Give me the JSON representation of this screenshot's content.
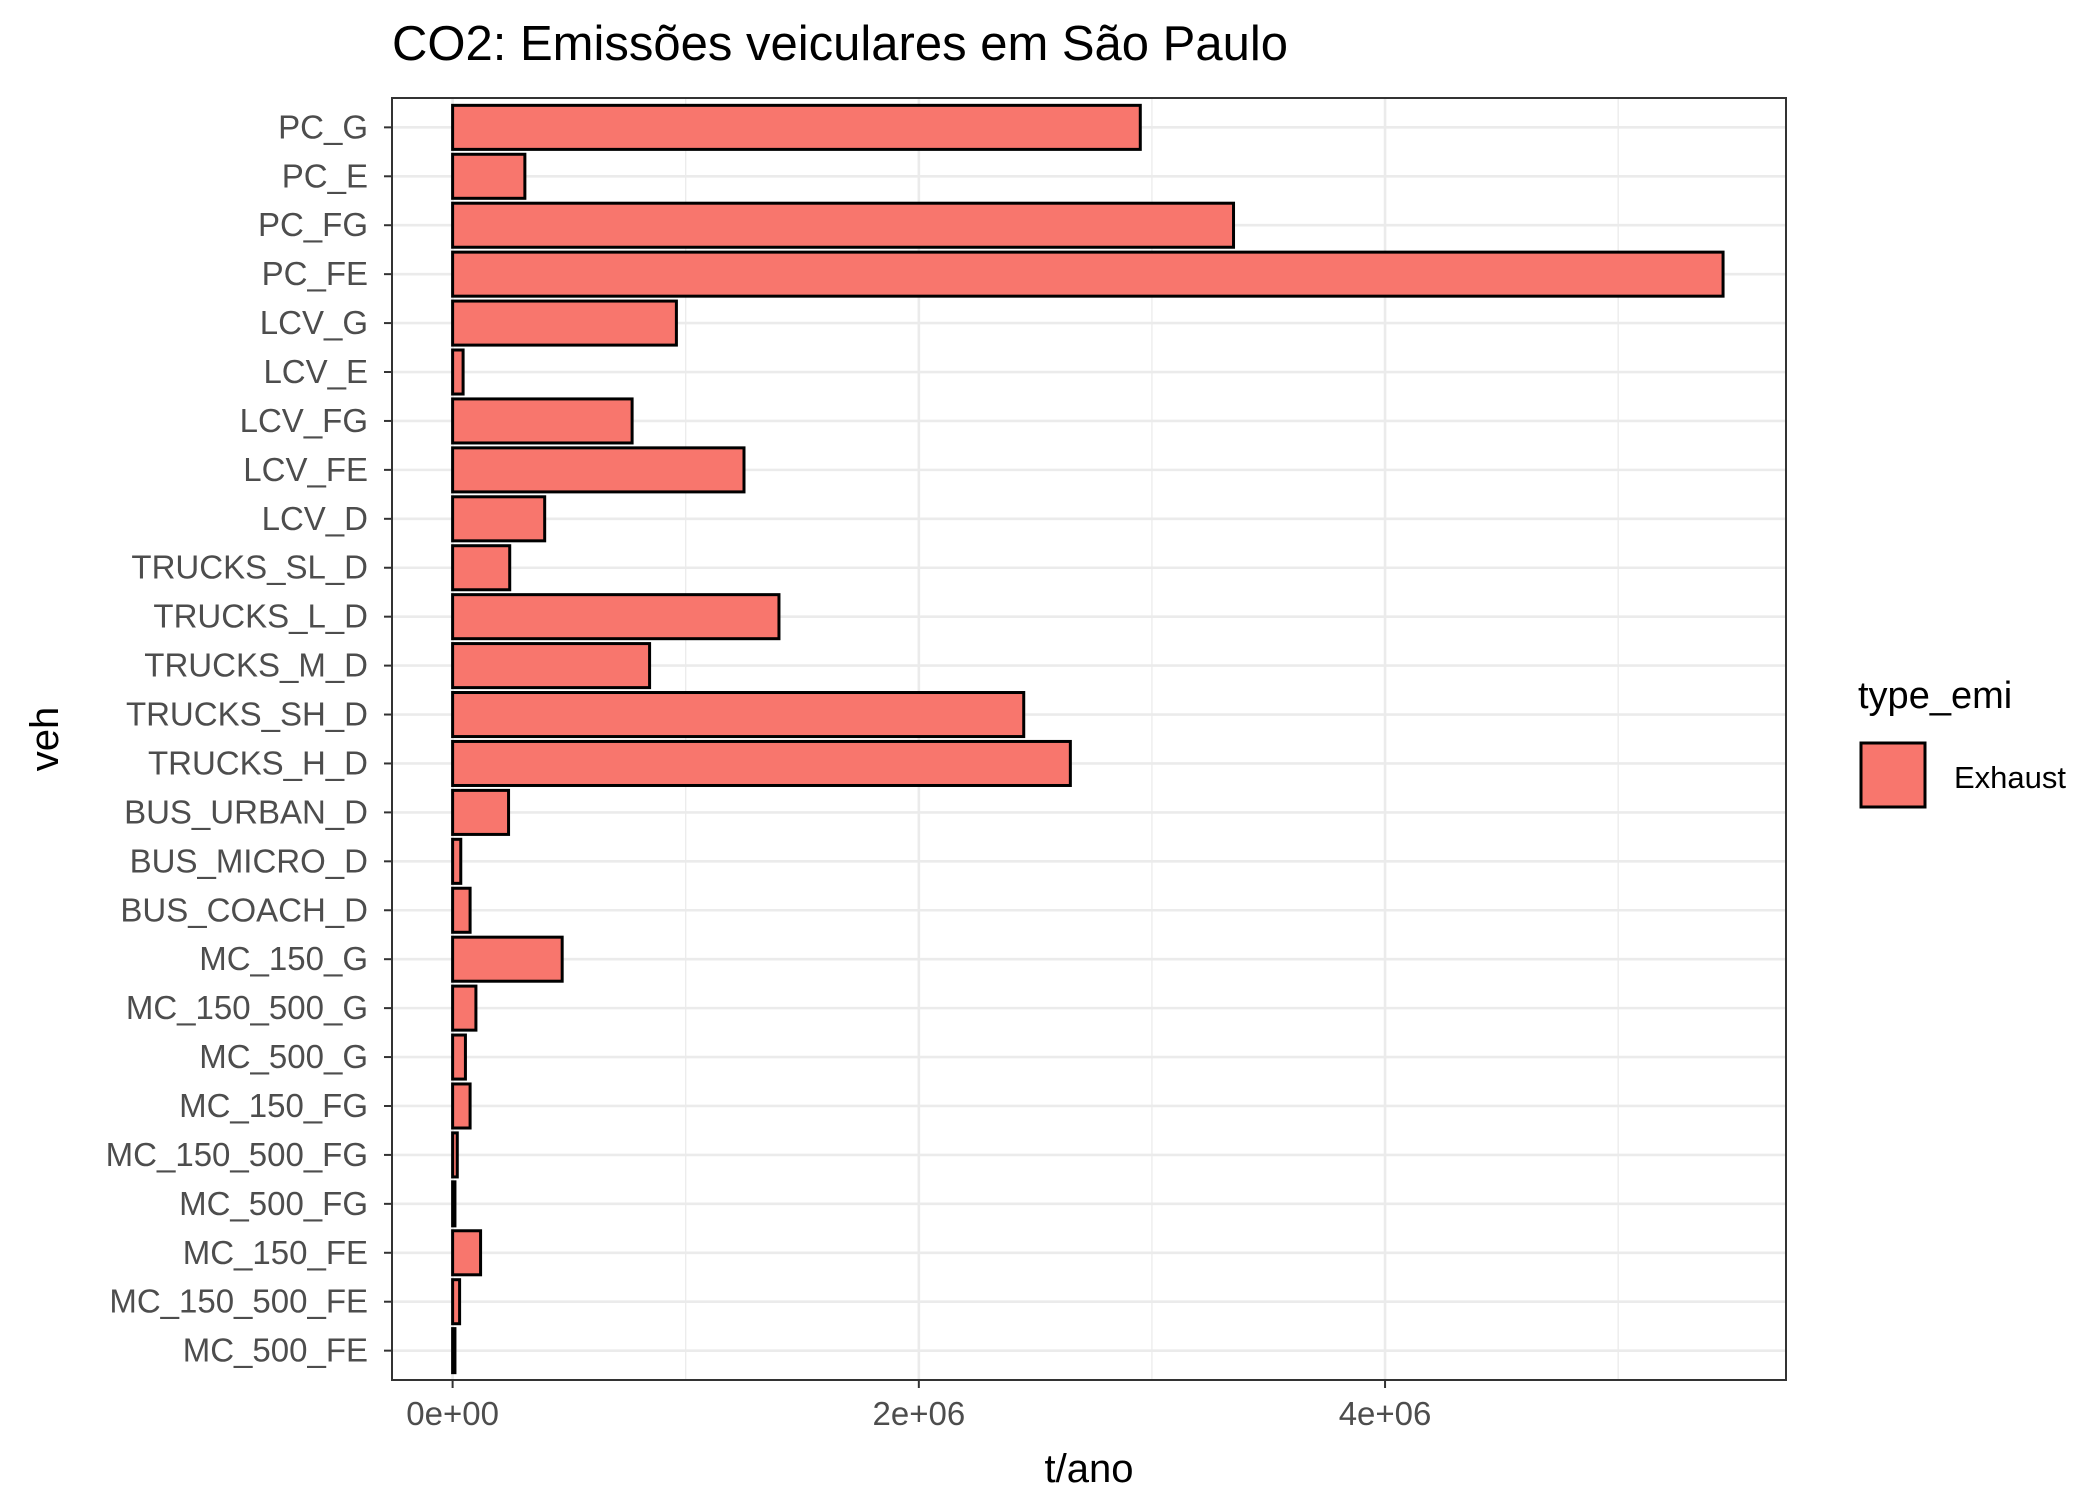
{
  "chart_data": {
    "type": "bar",
    "orientation": "horizontal",
    "title": "CO2: Emissões veiculares em São Paulo",
    "xlabel": "t/ano",
    "ylabel": "veh",
    "categories": [
      "PC_G",
      "PC_E",
      "PC_FG",
      "PC_FE",
      "LCV_G",
      "LCV_E",
      "LCV_FG",
      "LCV_FE",
      "LCV_D",
      "TRUCKS_SL_D",
      "TRUCKS_L_D",
      "TRUCKS_M_D",
      "TRUCKS_SH_D",
      "TRUCKS_H_D",
      "BUS_URBAN_D",
      "BUS_MICRO_D",
      "BUS_COACH_D",
      "MC_150_G",
      "MC_150_500_G",
      "MC_500_G",
      "MC_150_FG",
      "MC_150_500_FG",
      "MC_500_FG",
      "MC_150_FE",
      "MC_150_500_FE",
      "MC_500_FE"
    ],
    "series": [
      {
        "name": "Exhaust",
        "color": "#F8766D",
        "values": [
          2950000,
          310000,
          3350000,
          5450000,
          960000,
          45000,
          770000,
          1250000,
          395000,
          245000,
          1400000,
          845000,
          2450000,
          2650000,
          240000,
          35000,
          75000,
          470000,
          100000,
          55000,
          75000,
          20000,
          10000,
          120000,
          30000,
          10000
        ]
      }
    ],
    "xlim": [
      -260000,
      5720000
    ],
    "x_ticks": [
      0,
      2000000,
      4000000
    ],
    "x_tick_labels": [
      "0e+00",
      "2e+06",
      "4e+06"
    ],
    "grid": true,
    "legend": {
      "title": "type_emi",
      "placement": "right",
      "items": [
        "Exhaust"
      ]
    }
  }
}
